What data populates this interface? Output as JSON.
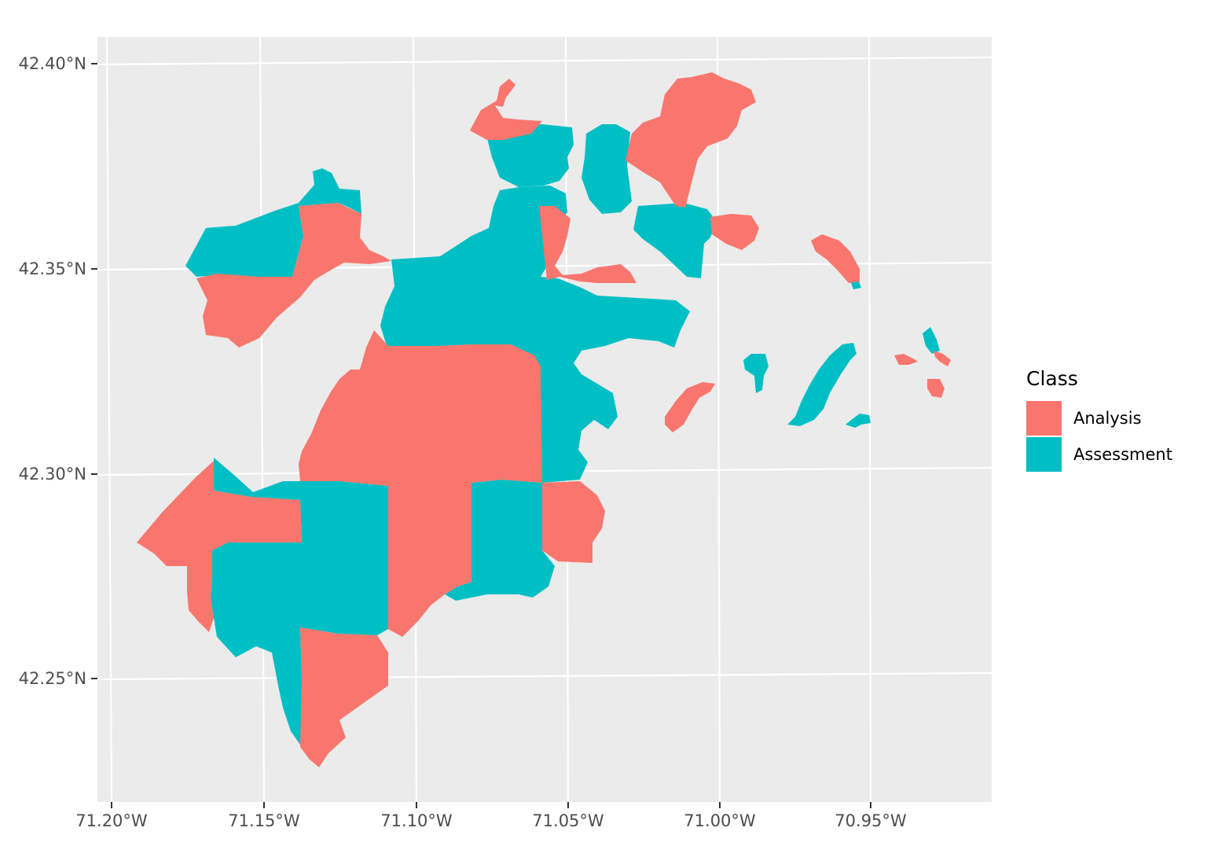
{
  "chart_data": {
    "type": "choropleth",
    "x_axis": {
      "ticks": [
        "71.20°W",
        "71.15°W",
        "71.10°W",
        "71.05°W",
        "71.00°W",
        "70.95°W"
      ]
    },
    "y_axis": {
      "ticks": [
        "42.40°N",
        "42.35°N",
        "42.30°N",
        "42.25°N"
      ]
    },
    "panel_background": "#ebebeb",
    "grid": true,
    "legend": {
      "title": "Class",
      "placement": "right",
      "entries": [
        {
          "label": "Analysis",
          "color": "#F8766D"
        },
        {
          "label": "Assessment",
          "color": "#00BFC4"
        }
      ]
    }
  }
}
